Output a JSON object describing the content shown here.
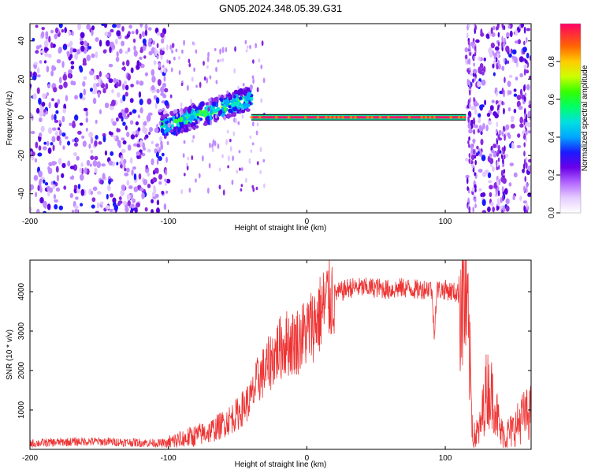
{
  "title": "GN05.2024.348.05.39.G31",
  "chart_data": [
    {
      "type": "heatmap",
      "xlabel": "Height of straight line (km)",
      "ylabel": "Frequency (Hz)",
      "xlim": [
        -200,
        162
      ],
      "ylim": [
        -50,
        49
      ],
      "xticks": [
        -200,
        -100,
        0,
        100
      ],
      "yticks": [
        -40,
        -20,
        0,
        20,
        40
      ],
      "colorbar": {
        "label": "Normalized spectral amplitude",
        "range": [
          0,
          1
        ],
        "ticks": [
          "0.0",
          "0.2",
          "0.4",
          "0.6",
          "0.8"
        ]
      },
      "features": [
        {
          "name": "noise-left",
          "x_range": [
            -200,
            -100
          ],
          "y_range": [
            -50,
            49
          ],
          "amplitude": 0.1
        },
        {
          "name": "rising-band",
          "x_range": [
            -105,
            -40
          ],
          "y_start": -5,
          "y_end": 10,
          "amplitude": 0.4
        },
        {
          "name": "carrier-line",
          "x_range": [
            -40,
            115
          ],
          "y": 0,
          "amplitude": 0.95
        },
        {
          "name": "noise-right",
          "x_range": [
            115,
            162
          ],
          "y_range": [
            -50,
            49
          ],
          "amplitude": 0.15
        }
      ]
    },
    {
      "type": "line",
      "xlabel": "Height of straight line (km)",
      "ylabel": "SNR (10 * v/v)",
      "xlim": [
        -200,
        162
      ],
      "ylim": [
        0,
        4800
      ],
      "xticks": [
        -200,
        -100,
        0,
        100
      ],
      "yticks": [
        1000,
        2000,
        3000,
        4000
      ],
      "color": "#ee3333",
      "series": [
        {
          "x": [
            -200,
            -180,
            -160,
            -140,
            -120,
            -100,
            -90,
            -80,
            -70,
            -60,
            -50,
            -40,
            -35,
            -30,
            -25,
            -20,
            -15,
            -10,
            -5,
            0,
            5,
            10,
            15,
            20,
            25,
            30,
            40,
            50,
            60,
            70,
            80,
            90,
            92,
            94,
            100,
            110,
            115,
            118,
            120,
            125,
            130,
            135,
            140,
            145,
            150,
            155,
            160,
            162
          ],
          "y": [
            150,
            180,
            200,
            190,
            170,
            150,
            250,
            350,
            450,
            650,
            900,
            1300,
            1800,
            2000,
            2300,
            2550,
            2700,
            2700,
            2800,
            3000,
            3200,
            3450,
            3800,
            3950,
            4000,
            4100,
            4100,
            4100,
            4050,
            4100,
            4050,
            4100,
            3000,
            4050,
            4050,
            3950,
            3800,
            2000,
            250,
            500,
            1600,
            1300,
            400,
            400,
            500,
            800,
            900,
            950
          ]
        }
      ]
    }
  ]
}
